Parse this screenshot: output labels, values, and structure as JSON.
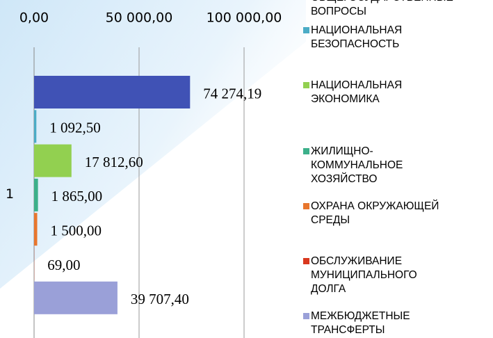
{
  "chart_data": {
    "type": "bar",
    "orientation": "horizontal",
    "categories": [
      "1"
    ],
    "series": [
      {
        "name": "ОБЩЕГОСУДАРСТВЕННЫЕ ВОПРОСЫ",
        "color": "#4052b5",
        "values": [
          74274.19
        ],
        "value_labels": [
          "74 274,19"
        ]
      },
      {
        "name": "НАЦИОНАЛЬНАЯ БЕЗОПАСНОСТЬ",
        "color": "#4bacc6",
        "values": [
          1092.5
        ],
        "value_labels": [
          "1 092,50"
        ]
      },
      {
        "name": "НАЦИОНАЛЬНАЯ ЭКОНОМИКА",
        "color": "#92d050",
        "values": [
          17812.6
        ],
        "value_labels": [
          "17 812,60"
        ]
      },
      {
        "name": "ЖИЛИЩНО-КОММУНАЛЬНОЕ ХОЗЯЙСТВО",
        "color": "#3cb08a",
        "values": [
          1865.0
        ],
        "value_labels": [
          "1 865,00"
        ]
      },
      {
        "name": "ОХРАНА ОКРУЖАЮЩЕЙ СРЕДЫ",
        "color": "#e8762d",
        "values": [
          1500.0
        ],
        "value_labels": [
          "1 500,00"
        ]
      },
      {
        "name": "ОБСЛУЖИВАНИЕ МУНИЦИПАЛЬНОГО ДОЛГА",
        "color": "#d9381e",
        "values": [
          69.0
        ],
        "value_labels": [
          "69,00"
        ]
      },
      {
        "name": "МЕЖБЮДЖЕТНЫЕ ТРАНСФЕРТЫ",
        "color": "#9aa0d8",
        "values": [
          39707.4
        ],
        "value_labels": [
          "39 707,40"
        ]
      }
    ],
    "xlim": [
      0,
      100000
    ],
    "xticks": [
      {
        "value": 0,
        "label": "0,00"
      },
      {
        "value": 50000,
        "label": "50 000,00"
      },
      {
        "value": 100000,
        "label": "100 000,00"
      }
    ],
    "grid": true,
    "legend": "right"
  }
}
